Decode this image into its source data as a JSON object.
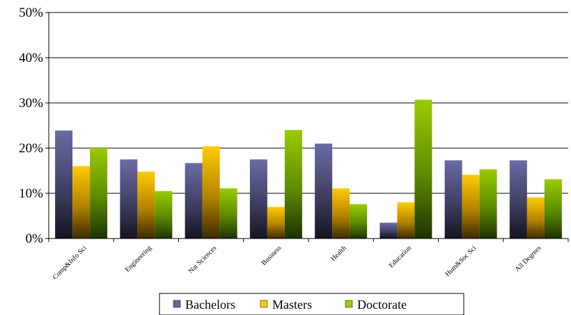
{
  "chart_data": {
    "type": "bar",
    "categories": [
      "Comp&Info Sci",
      "Engineering",
      "Nat Sciences",
      "Business",
      "Health",
      "Education",
      "Hum&Soc Sci",
      "All Degrees"
    ],
    "series": [
      {
        "name": "Bachelors",
        "values": [
          23.9,
          17.5,
          16.7,
          17.5,
          21.0,
          3.5,
          17.3,
          17.3
        ],
        "color": "#666699"
      },
      {
        "name": "Masters",
        "values": [
          16.0,
          14.8,
          20.4,
          7.0,
          11.1,
          8.0,
          14.1,
          9.1
        ],
        "color": "#ffcc00"
      },
      {
        "name": "Doctorate",
        "values": [
          20.0,
          10.5,
          11.1,
          24.0,
          7.6,
          30.7,
          15.3,
          13.1
        ],
        "color": "#99cc00"
      }
    ],
    "ylim": [
      0,
      50
    ],
    "yticks": [
      "0%",
      "10%",
      "20%",
      "30%",
      "40%",
      "50%"
    ],
    "xlabel": "",
    "ylabel": "",
    "title": "",
    "grid": "horizontal",
    "legend": "bottom"
  }
}
